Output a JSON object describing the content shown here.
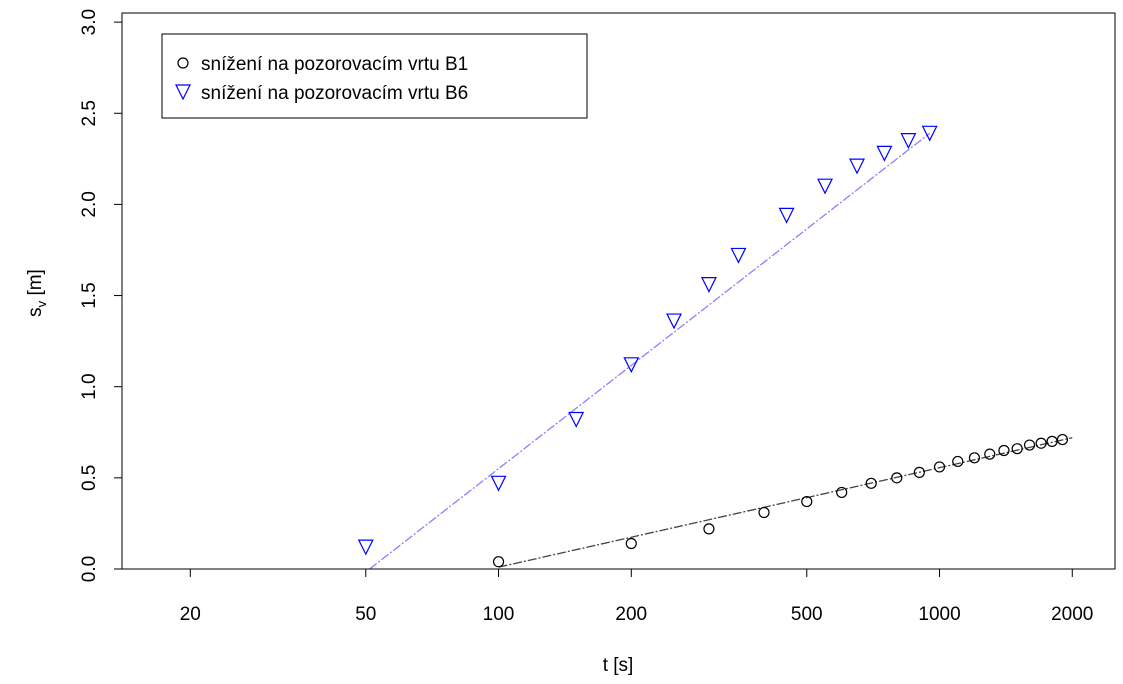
{
  "chart_data": {
    "type": "scatter",
    "x_scale": "log",
    "xlim": [
      14,
      2500
    ],
    "ylim": [
      0,
      3.05
    ],
    "x_ticks": [
      20,
      50,
      100,
      200,
      500,
      1000,
      2000
    ],
    "x_tick_labels": [
      "20",
      "50",
      "100",
      "200",
      "500",
      "1000",
      "2000"
    ],
    "y_ticks": [
      0,
      0.5,
      1,
      1.5,
      2,
      2.5,
      3
    ],
    "y_tick_labels": [
      "0.0",
      "0.5",
      "1.0",
      "1.5",
      "2.0",
      "2.5",
      "3.0"
    ],
    "xlabel": "t [s]",
    "ylabel_main": "s",
    "ylabel_sub": "v",
    "ylabel_unit": " [m]",
    "grid": false,
    "legend_position": "top-left",
    "series": [
      {
        "name": "snížení na pozorovacím vrtu B1",
        "marker": "circle",
        "color": "#000000",
        "x": [
          100,
          200,
          300,
          400,
          500,
          600,
          700,
          800,
          900,
          1000,
          1100,
          1200,
          1300,
          1400,
          1500,
          1600,
          1700,
          1800,
          1900
        ],
        "y": [
          0.04,
          0.14,
          0.22,
          0.31,
          0.37,
          0.42,
          0.47,
          0.5,
          0.53,
          0.56,
          0.59,
          0.61,
          0.63,
          0.65,
          0.66,
          0.68,
          0.69,
          0.7,
          0.71
        ],
        "fit_line": {
          "x": [
            100,
            2000
          ],
          "y": [
            0.01,
            0.72
          ],
          "color": "#444444"
        }
      },
      {
        "name": "snížení na pozorovacím vrtu B6",
        "marker": "triangle-down",
        "color": "#0000ff",
        "x": [
          50,
          100,
          150,
          200,
          250,
          300,
          350,
          450,
          550,
          650,
          750,
          850,
          950
        ],
        "y": [
          0.12,
          0.47,
          0.82,
          1.12,
          1.36,
          1.56,
          1.72,
          1.94,
          2.1,
          2.21,
          2.28,
          2.35,
          2.39
        ],
        "fit_line": {
          "x": [
            51,
            950
          ],
          "y": [
            0.0,
            2.39
          ],
          "color": "#8f7fff"
        }
      }
    ]
  }
}
